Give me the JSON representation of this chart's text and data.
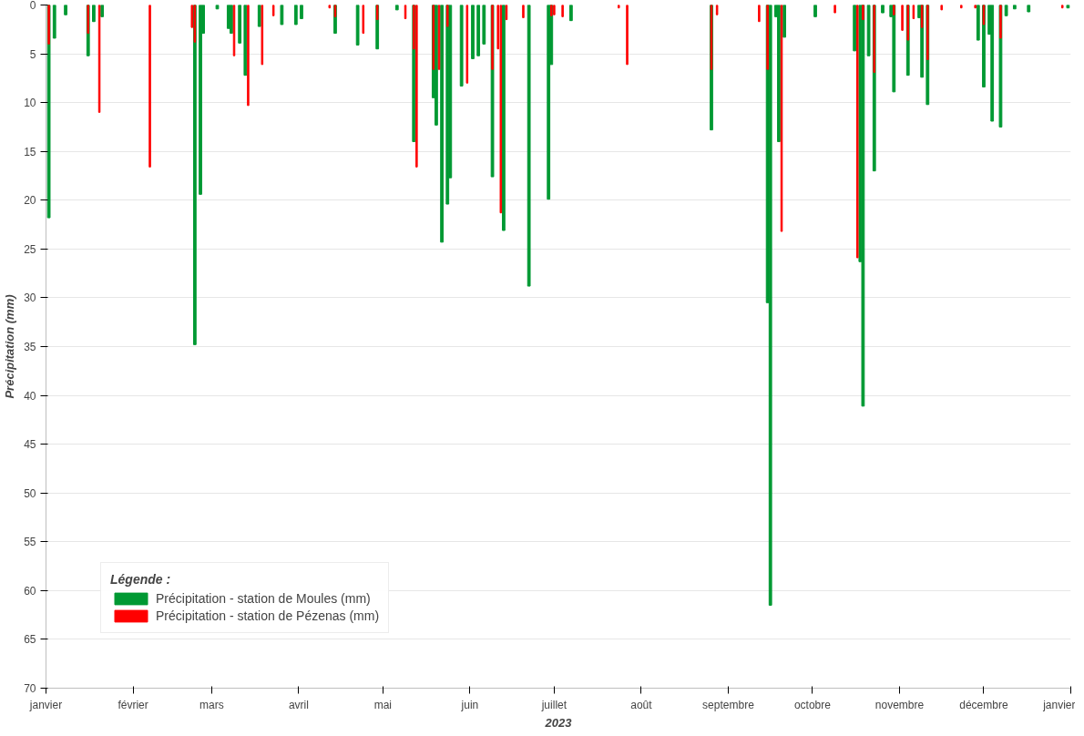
{
  "chart_data": {
    "type": "bar",
    "xlabel": "2023",
    "ylabel": "Précipitation (mm)",
    "legend_title": "Légende :",
    "legend": "bottom left",
    "grid": "y",
    "xlim": [
      "2023-01-01",
      "2024-01-01"
    ],
    "xticks": [
      {
        "value": "2023-01-01",
        "label": "janvier"
      },
      {
        "value": "2023-02-01",
        "label": "février"
      },
      {
        "value": "2023-03-01",
        "label": "mars"
      },
      {
        "value": "2023-04-01",
        "label": "avril"
      },
      {
        "value": "2023-05-01",
        "label": "mai"
      },
      {
        "value": "2023-06-01",
        "label": "juin"
      },
      {
        "value": "2023-07-01",
        "label": "juillet"
      },
      {
        "value": "2023-08-01",
        "label": "août"
      },
      {
        "value": "2023-09-01",
        "label": "septembre"
      },
      {
        "value": "2023-10-01",
        "label": "octobre"
      },
      {
        "value": "2023-11-01",
        "label": "novembre"
      },
      {
        "value": "2023-12-01",
        "label": "décembre"
      },
      {
        "value": "2024-01-01",
        "label": "janvier"
      }
    ],
    "ylim": [
      70,
      0
    ],
    "yticks": [
      0,
      5,
      10,
      15,
      20,
      25,
      30,
      35,
      40,
      45,
      50,
      55,
      60,
      65,
      70
    ],
    "series": [
      {
        "name": "Précipitation - station de Moules (mm)",
        "color": "#009933",
        "x": [
          "2023-01-02",
          "2023-01-04",
          "2023-01-08",
          "2023-01-16",
          "2023-01-18",
          "2023-01-21",
          "2023-02-23",
          "2023-02-25",
          "2023-02-26",
          "2023-03-03",
          "2023-03-07",
          "2023-03-08",
          "2023-03-11",
          "2023-03-13",
          "2023-03-18",
          "2023-03-26",
          "2023-03-31",
          "2023-04-02",
          "2023-04-14",
          "2023-04-22",
          "2023-04-29",
          "2023-05-06",
          "2023-05-12",
          "2023-05-19",
          "2023-05-20",
          "2023-05-22",
          "2023-05-24",
          "2023-05-25",
          "2023-05-29",
          "2023-06-02",
          "2023-06-04",
          "2023-06-06",
          "2023-06-09",
          "2023-06-13",
          "2023-06-22",
          "2023-06-29",
          "2023-06-30",
          "2023-07-07",
          "2023-08-26",
          "2023-09-15",
          "2023-09-16",
          "2023-09-18",
          "2023-09-19",
          "2023-09-21",
          "2023-10-02",
          "2023-10-16",
          "2023-10-18",
          "2023-10-19",
          "2023-10-21",
          "2023-10-23",
          "2023-10-26",
          "2023-10-29",
          "2023-10-30",
          "2023-11-04",
          "2023-11-08",
          "2023-11-09",
          "2023-11-11",
          "2023-11-29",
          "2023-12-01",
          "2023-12-03",
          "2023-12-04",
          "2023-12-07",
          "2023-12-09",
          "2023-12-12",
          "2023-12-17",
          "2023-12-31"
        ],
        "values": [
          21.8,
          3.4,
          1.0,
          5.2,
          1.7,
          1.2,
          34.8,
          19.4,
          2.9,
          0.4,
          2.4,
          2.9,
          3.9,
          7.2,
          2.2,
          2.0,
          2.0,
          1.4,
          2.9,
          4.1,
          4.5,
          0.5,
          14.0,
          9.5,
          12.3,
          24.3,
          20.4,
          17.7,
          8.3,
          5.5,
          5.2,
          4.0,
          17.6,
          23.1,
          28.8,
          19.9,
          6.1,
          1.6,
          12.8,
          30.5,
          61.5,
          1.2,
          14.0,
          3.3,
          1.2,
          4.7,
          26.3,
          41.1,
          5.2,
          17.0,
          0.8,
          1.2,
          8.9,
          7.2,
          1.3,
          7.4,
          10.2,
          3.6,
          8.4,
          3.0,
          11.9,
          12.5,
          1.1,
          0.4,
          0.7,
          0.3
        ]
      },
      {
        "name": "Précipitation - station de Pézenas (mm)",
        "color": "#ff0000",
        "x": [
          "2023-01-02",
          "2023-01-16",
          "2023-01-20",
          "2023-02-07",
          "2023-02-22",
          "2023-02-23",
          "2023-03-09",
          "2023-03-14",
          "2023-03-19",
          "2023-03-23",
          "2023-04-12",
          "2023-04-14",
          "2023-04-24",
          "2023-04-29",
          "2023-05-09",
          "2023-05-12",
          "2023-05-13",
          "2023-05-19",
          "2023-05-21",
          "2023-05-24",
          "2023-05-31",
          "2023-06-09",
          "2023-06-11",
          "2023-06-12",
          "2023-06-14",
          "2023-06-20",
          "2023-06-30",
          "2023-07-01",
          "2023-07-04",
          "2023-07-24",
          "2023-07-27",
          "2023-08-26",
          "2023-08-28",
          "2023-09-12",
          "2023-09-15",
          "2023-09-20",
          "2023-10-09",
          "2023-10-17",
          "2023-10-19",
          "2023-10-23",
          "2023-10-30",
          "2023-11-02",
          "2023-11-04",
          "2023-11-06",
          "2023-11-09",
          "2023-11-11",
          "2023-11-16",
          "2023-11-23",
          "2023-11-28",
          "2023-12-01",
          "2023-12-07",
          "2023-12-29"
        ],
        "values": [
          4.0,
          2.9,
          11.0,
          16.6,
          2.3,
          3.8,
          5.2,
          10.3,
          6.1,
          1.1,
          0.3,
          1.2,
          2.9,
          1.5,
          1.4,
          4.5,
          16.6,
          6.6,
          6.6,
          2.2,
          8.0,
          6.6,
          4.5,
          21.3,
          1.5,
          1.3,
          1.1,
          1.0,
          1.2,
          0.3,
          6.1,
          6.6,
          1.0,
          1.7,
          6.6,
          23.2,
          0.8,
          25.9,
          1.5,
          6.9,
          1.0,
          2.6,
          3.6,
          1.4,
          2.3,
          5.6,
          0.5,
          0.3,
          0.3,
          2.0,
          3.4,
          0.3
        ]
      }
    ]
  }
}
